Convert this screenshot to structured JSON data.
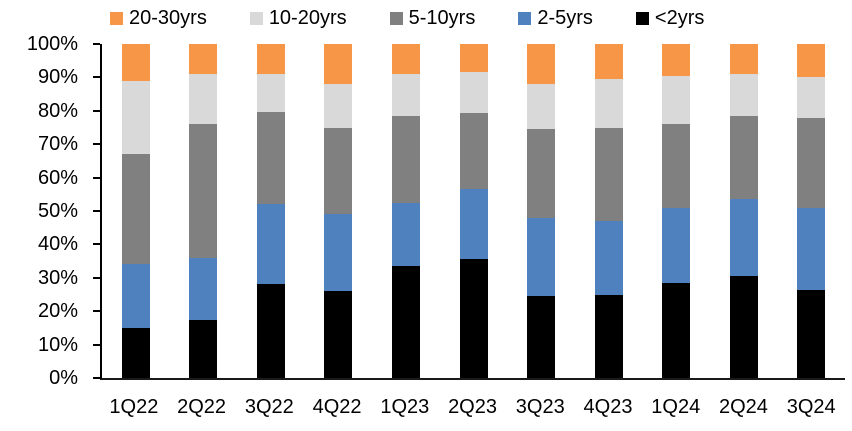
{
  "chart_data": {
    "type": "bar",
    "subtype": "stacked-100-percent",
    "title": "",
    "categories": [
      "1Q22",
      "2Q22",
      "3Q22",
      "4Q22",
      "1Q23",
      "2Q23",
      "3Q23",
      "4Q23",
      "1Q24",
      "2Q24",
      "3Q24"
    ],
    "series": [
      {
        "name": "<2yrs",
        "color": "#000000",
        "values": [
          15.0,
          17.5,
          28.0,
          26.0,
          33.5,
          35.5,
          24.5,
          25.0,
          28.5,
          30.5,
          26.5
        ]
      },
      {
        "name": "2-5yrs",
        "color": "#4E81BD",
        "values": [
          19.0,
          18.5,
          24.0,
          23.0,
          19.0,
          21.0,
          23.5,
          22.0,
          22.5,
          23.0,
          24.5
        ]
      },
      {
        "name": "5-10yrs",
        "color": "#808080",
        "values": [
          33.0,
          40.0,
          27.5,
          26.0,
          26.0,
          23.0,
          26.5,
          28.0,
          25.0,
          25.0,
          27.0
        ]
      },
      {
        "name": "10-20yrs",
        "color": "#D9D9D9",
        "values": [
          22.0,
          15.0,
          11.5,
          13.0,
          12.5,
          12.0,
          13.5,
          14.5,
          14.5,
          12.5,
          12.0
        ]
      },
      {
        "name": "20-30yrs",
        "color": "#F79646",
        "values": [
          11.0,
          9.0,
          9.0,
          12.0,
          9.0,
          8.5,
          12.0,
          10.5,
          9.5,
          9.0,
          10.0
        ]
      }
    ],
    "legend": {
      "position": "top",
      "order": [
        "20-30yrs",
        "10-20yrs",
        "5-10yrs",
        "2-5yrs",
        "<2yrs"
      ]
    },
    "y_axis": {
      "min": 0,
      "max": 100,
      "step": 10,
      "unit": "%",
      "tick_labels": [
        "0%",
        "10%",
        "20%",
        "30%",
        "40%",
        "50%",
        "60%",
        "70%",
        "80%",
        "90%",
        "100%"
      ]
    },
    "x_axis": {
      "label": ""
    },
    "grid": false,
    "colors": {
      "axis": "#000000",
      "background": "#FFFFFF"
    }
  }
}
